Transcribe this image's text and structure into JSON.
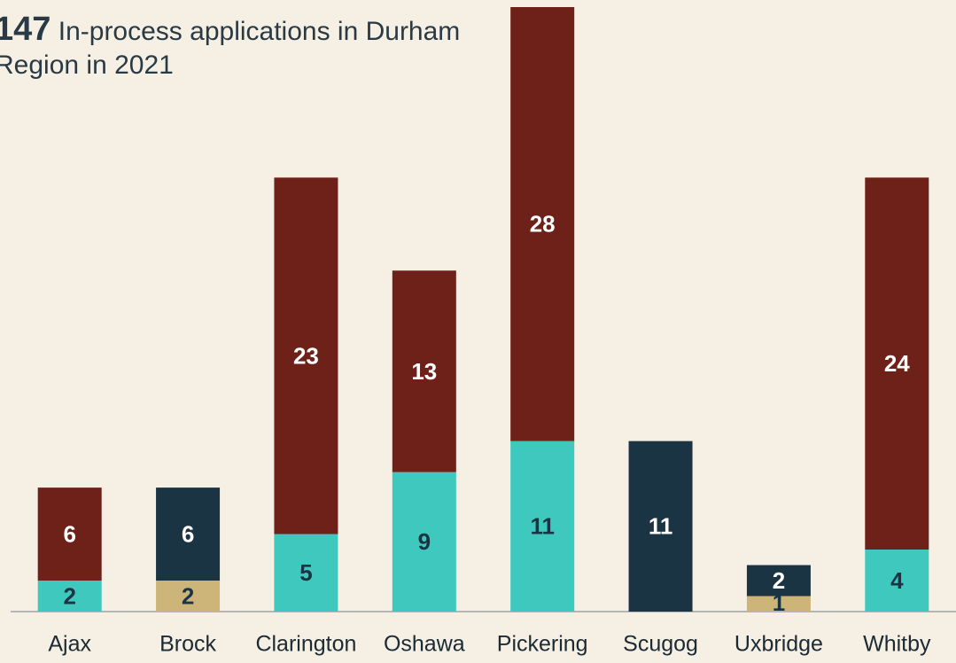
{
  "chart_data": {
    "type": "stacked_bar",
    "title_value": "147",
    "title": "In-process applications in Durham Region in 2021",
    "categories": [
      "Ajax",
      "Brock",
      "Clarington",
      "Oshawa",
      "Pickering",
      "Scugog",
      "Uxbridge",
      "Whitby"
    ],
    "series": [
      {
        "color": "#3fc8bd",
        "label_color": "#1b3444",
        "values": [
          2,
          null,
          5,
          9,
          11,
          null,
          null,
          4
        ]
      },
      {
        "color": "#cdb57a",
        "label_color": "#1b3444",
        "values": [
          null,
          2,
          null,
          null,
          null,
          null,
          1,
          null
        ]
      },
      {
        "color": "#1b3444",
        "label_color": "#ffffff",
        "values": [
          null,
          6,
          null,
          null,
          null,
          11,
          2,
          null
        ]
      },
      {
        "color": "#6e2118",
        "label_color": "#ffffff",
        "values": [
          6,
          null,
          23,
          13,
          28,
          null,
          null,
          24
        ]
      }
    ],
    "ylim": [
      0,
      39
    ]
  }
}
